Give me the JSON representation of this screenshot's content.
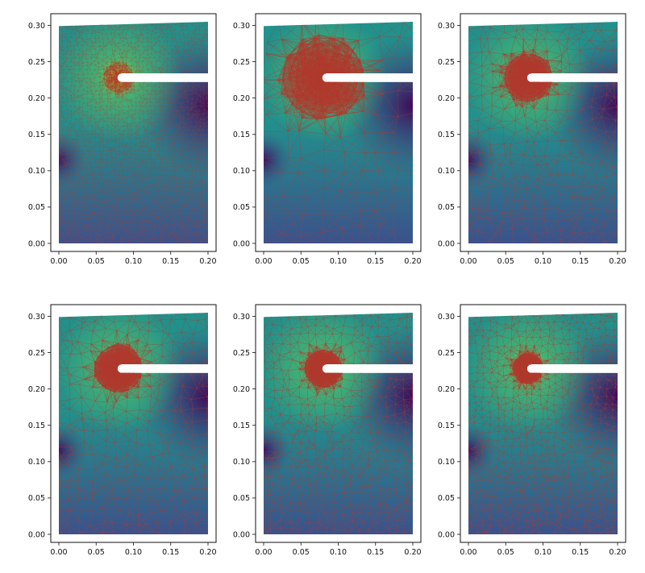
{
  "figure": {
    "rows": 2,
    "cols": 3,
    "background": "#ffffff"
  },
  "colormap": [
    "#440154",
    "#3b528b",
    "#21918c",
    "#5ec962",
    "#fde725"
  ],
  "mesh_color": "#b03a2e",
  "chart_data": [
    {
      "type": "heatmap",
      "panel": "row1-col1",
      "title": "",
      "xlabel": "",
      "ylabel": "",
      "xlim": [
        0.0,
        0.2
      ],
      "ylim": [
        0.0,
        0.3
      ],
      "xticks": [
        "0.00",
        "0.05",
        "0.10",
        "0.15",
        "0.20"
      ],
      "yticks": [
        "0.00",
        "0.05",
        "0.10",
        "0.15",
        "0.20",
        "0.25",
        "0.30"
      ],
      "crack_tip": [
        0.08,
        0.228
      ],
      "notch_y_range": [
        0.222,
        0.234
      ],
      "top_edge": [
        [
          0.0,
          0.299
        ],
        [
          0.2,
          0.305
        ]
      ],
      "mesh_level": "very-fine",
      "grid": false
    },
    {
      "type": "heatmap",
      "panel": "row1-col2",
      "title": "",
      "xlabel": "",
      "ylabel": "",
      "xlim": [
        0.0,
        0.2
      ],
      "ylim": [
        0.0,
        0.3
      ],
      "xticks": [
        "0.00",
        "0.05",
        "0.10",
        "0.15",
        "0.20"
      ],
      "yticks": [
        "0.00",
        "0.05",
        "0.10",
        "0.15",
        "0.20",
        "0.25",
        "0.30"
      ],
      "crack_tip": [
        0.08,
        0.228
      ],
      "notch_y_range": [
        0.222,
        0.234
      ],
      "top_edge": [
        [
          0.0,
          0.299
        ],
        [
          0.2,
          0.305
        ]
      ],
      "mesh_level": "coarse",
      "grid": false
    },
    {
      "type": "heatmap",
      "panel": "row1-col3",
      "title": "",
      "xlabel": "",
      "ylabel": "",
      "xlim": [
        0.0,
        0.2
      ],
      "ylim": [
        0.0,
        0.3
      ],
      "xticks": [
        "0.00",
        "0.05",
        "0.10",
        "0.15",
        "0.20"
      ],
      "yticks": [
        "0.00",
        "0.05",
        "0.10",
        "0.15",
        "0.20",
        "0.25",
        "0.30"
      ],
      "crack_tip": [
        0.08,
        0.228
      ],
      "notch_y_range": [
        0.222,
        0.234
      ],
      "top_edge": [
        [
          0.0,
          0.299
        ],
        [
          0.2,
          0.305
        ]
      ],
      "mesh_level": "medium",
      "grid": false
    },
    {
      "type": "heatmap",
      "panel": "row2-col1",
      "title": "",
      "xlabel": "",
      "ylabel": "",
      "xlim": [
        0.0,
        0.2
      ],
      "ylim": [
        0.0,
        0.3
      ],
      "xticks": [
        "0.00",
        "0.05",
        "0.10",
        "0.15",
        "0.20"
      ],
      "yticks": [
        "0.00",
        "0.05",
        "0.10",
        "0.15",
        "0.20",
        "0.25",
        "0.30"
      ],
      "crack_tip": [
        0.08,
        0.228
      ],
      "notch_y_range": [
        0.222,
        0.234
      ],
      "top_edge": [
        [
          0.0,
          0.299
        ],
        [
          0.2,
          0.305
        ]
      ],
      "mesh_level": "medium",
      "grid": false
    },
    {
      "type": "heatmap",
      "panel": "row2-col2",
      "title": "",
      "xlabel": "",
      "ylabel": "",
      "xlim": [
        0.0,
        0.2
      ],
      "ylim": [
        0.0,
        0.3
      ],
      "xticks": [
        "0.00",
        "0.05",
        "0.10",
        "0.15",
        "0.20"
      ],
      "yticks": [
        "0.00",
        "0.05",
        "0.10",
        "0.15",
        "0.20",
        "0.25",
        "0.30"
      ],
      "crack_tip": [
        0.08,
        0.228
      ],
      "notch_y_range": [
        0.222,
        0.234
      ],
      "top_edge": [
        [
          0.0,
          0.299
        ],
        [
          0.2,
          0.305
        ]
      ],
      "mesh_level": "medium-fine",
      "grid": false
    },
    {
      "type": "heatmap",
      "panel": "row2-col3",
      "title": "",
      "xlabel": "",
      "ylabel": "",
      "xlim": [
        0.0,
        0.2
      ],
      "ylim": [
        0.0,
        0.3
      ],
      "xticks": [
        "0.00",
        "0.05",
        "0.10",
        "0.15",
        "0.20"
      ],
      "yticks": [
        "0.00",
        "0.05",
        "0.10",
        "0.15",
        "0.20",
        "0.25",
        "0.30"
      ],
      "crack_tip": [
        0.08,
        0.228
      ],
      "notch_y_range": [
        0.222,
        0.234
      ],
      "top_edge": [
        [
          0.0,
          0.299
        ],
        [
          0.2,
          0.305
        ]
      ],
      "mesh_level": "fine",
      "grid": false
    }
  ]
}
